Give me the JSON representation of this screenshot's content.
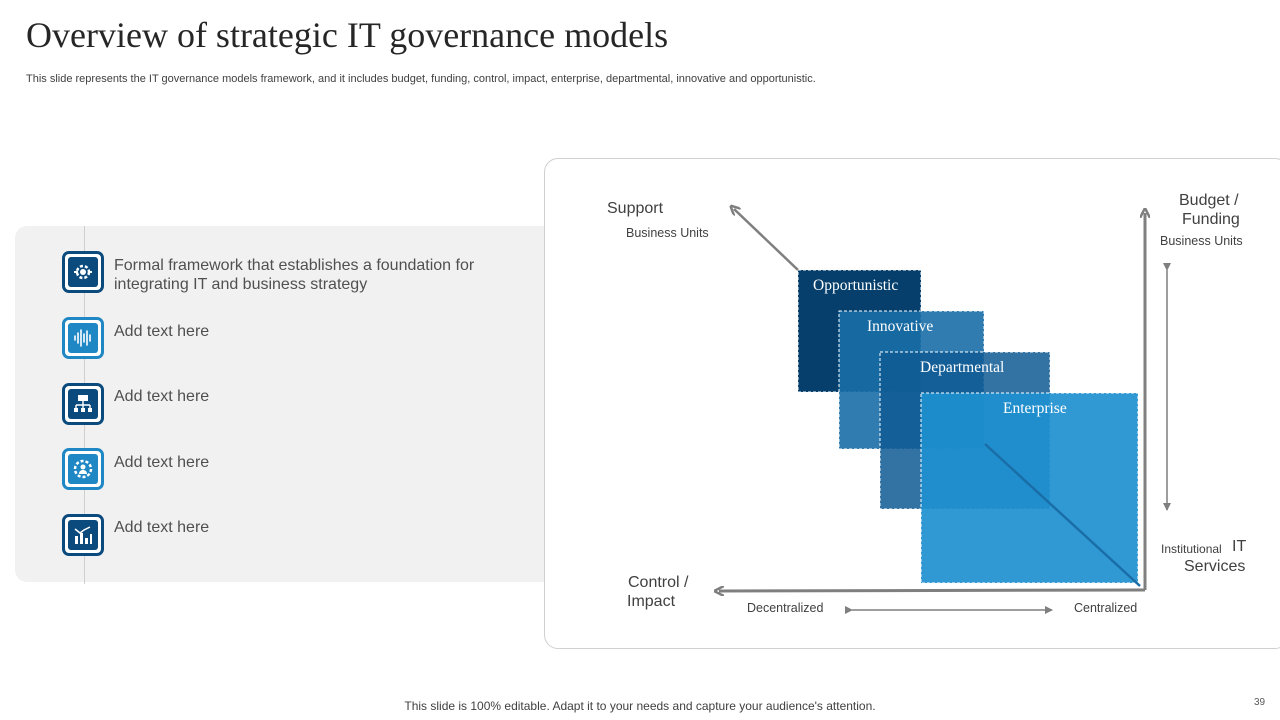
{
  "title": "Overview of strategic IT governance models",
  "subtitle": "This slide represents the IT governance models framework, and it includes budget, funding, control, impact, enterprise, departmental, innovative and opportunistic.",
  "items": [
    {
      "text": "Formal framework that establishes a foundation for integrating IT and business strategy",
      "icon": "gear-arrows-icon",
      "color": "#0b4a7d"
    },
    {
      "text": "Add text here",
      "icon": "audio-wave-icon",
      "color": "#1f87c4"
    },
    {
      "text": "Add text here",
      "icon": "network-flow-icon",
      "color": "#0b4a7d"
    },
    {
      "text": "Add text here",
      "icon": "gear-person-icon",
      "color": "#1f87c4"
    },
    {
      "text": "Add text here",
      "icon": "bar-chart-icon",
      "color": "#0b4a7d"
    }
  ],
  "diagram": {
    "support_label": "Support",
    "support_sub": "Business Units",
    "budget_label_line1": "Budget /",
    "budget_label_line2": "Funding",
    "budget_sub": "Business Units",
    "institutional_small": "Institutional",
    "institutional_it": "IT",
    "institutional_services": "Services",
    "control_line1": "Control /",
    "control_line2": "Impact",
    "decentralized": "Decentralized",
    "centralized": "Centralized",
    "boxes": [
      {
        "label": "Opportunistic",
        "color": "#063f6b"
      },
      {
        "label": "Innovative",
        "color": "#1a6ea8"
      },
      {
        "label": "Departmental",
        "color": "#0f5a93"
      },
      {
        "label": "Enterprise",
        "color": "#1e90cf"
      }
    ]
  },
  "footer": "This slide is 100% editable. Adapt it to your needs and capture your audience's attention.",
  "page_number": "39"
}
